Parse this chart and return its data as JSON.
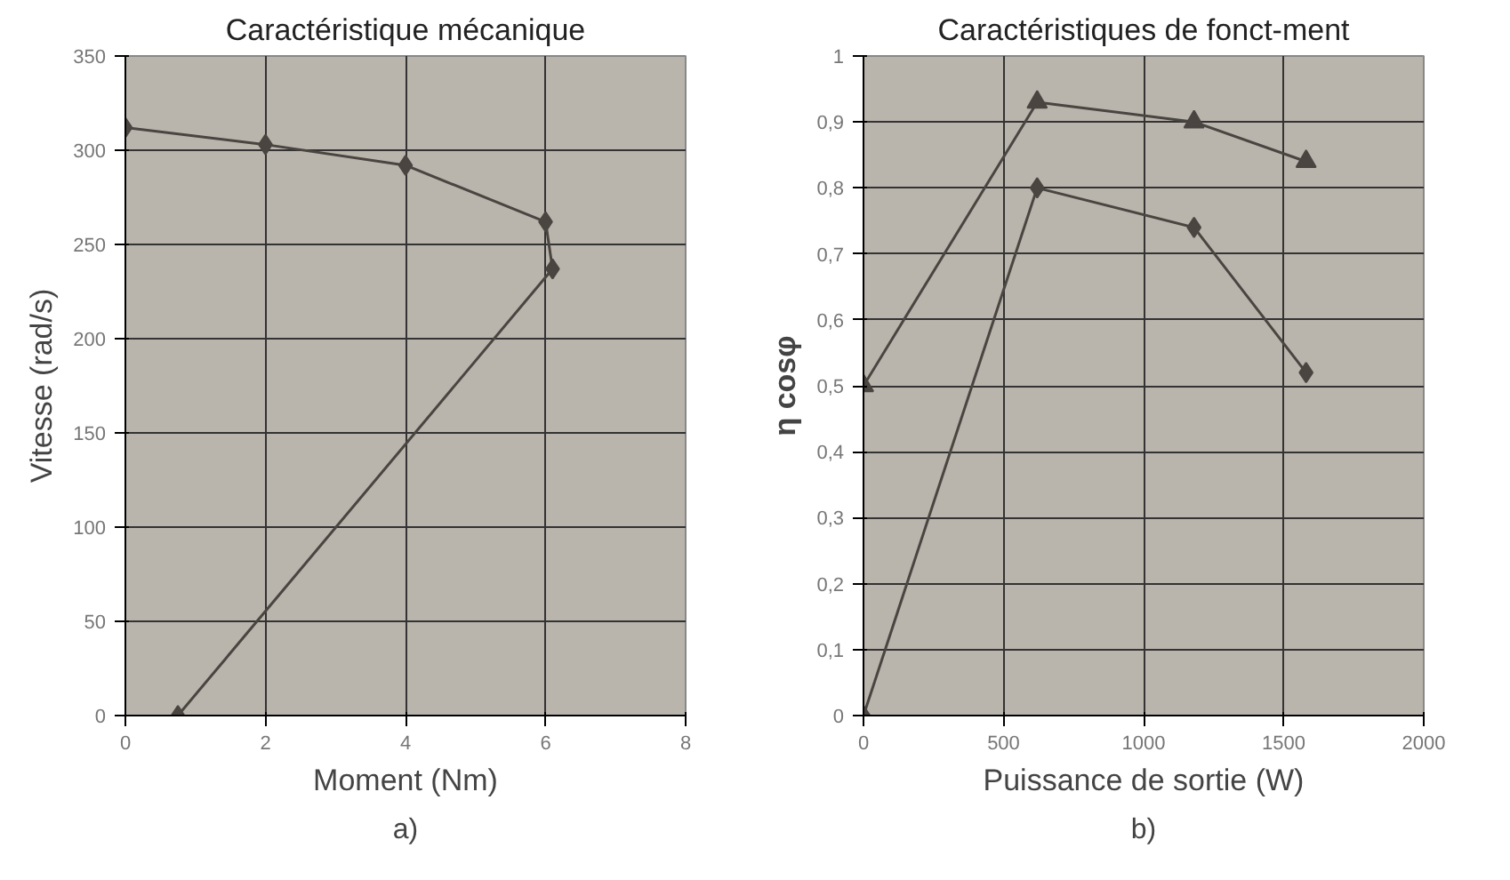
{
  "chart_data": [
    {
      "type": "line",
      "title": "Caractéristique mécanique",
      "xlabel": "Moment (Nm)",
      "ylabel": "Vitesse (rad/s)",
      "annotations": [
        "a)"
      ],
      "x": [
        0,
        2,
        4,
        6,
        6.1,
        0.75
      ],
      "series": [
        {
          "color": "#4a4540",
          "values": [
            312,
            303,
            292,
            262,
            237,
            0
          ]
        }
      ],
      "xlim": [
        0,
        8
      ],
      "xticks": [
        0,
        2,
        4,
        6,
        8
      ],
      "ylim": [
        0,
        350
      ],
      "yticks": [
        0,
        50,
        100,
        150,
        200,
        250,
        300,
        350
      ],
      "grid": true,
      "marker": "diamond"
    },
    {
      "type": "line",
      "title": "Caractéristiques de fonct-ment",
      "xlabel": "Puissance de sortie (W)",
      "ylabel": "η cosφ",
      "annotations": [
        "b)"
      ],
      "x": [
        0,
        620,
        1180,
        1580
      ],
      "series": [
        {
          "color": "#4a4540",
          "values": [
            0.5,
            0.93,
            0.9,
            0.84
          ],
          "marker": "triangle"
        },
        {
          "color": "#4a4540",
          "values": [
            0,
            0.8,
            0.74,
            0.52
          ],
          "marker": "diamond"
        }
      ],
      "xlim": [
        0,
        2000
      ],
      "xticks": [
        0,
        500,
        1000,
        1500,
        2000
      ],
      "ylim": [
        0,
        1
      ],
      "yticks": [
        0,
        {
          "value": 0.1,
          "label": "0,1"
        },
        {
          "value": 0.2,
          "label": "0,2"
        },
        {
          "value": 0.3,
          "label": "0,3"
        },
        {
          "value": 0.4,
          "label": "0,4"
        },
        {
          "value": 0.5,
          "label": "0,5"
        },
        {
          "value": 0.6,
          "label": "0,6"
        },
        {
          "value": 0.7,
          "label": "0,7"
        },
        {
          "value": 0.8,
          "label": "0,8"
        },
        {
          "value": 0.9,
          "label": "0,9"
        },
        1
      ],
      "grid": true
    }
  ]
}
